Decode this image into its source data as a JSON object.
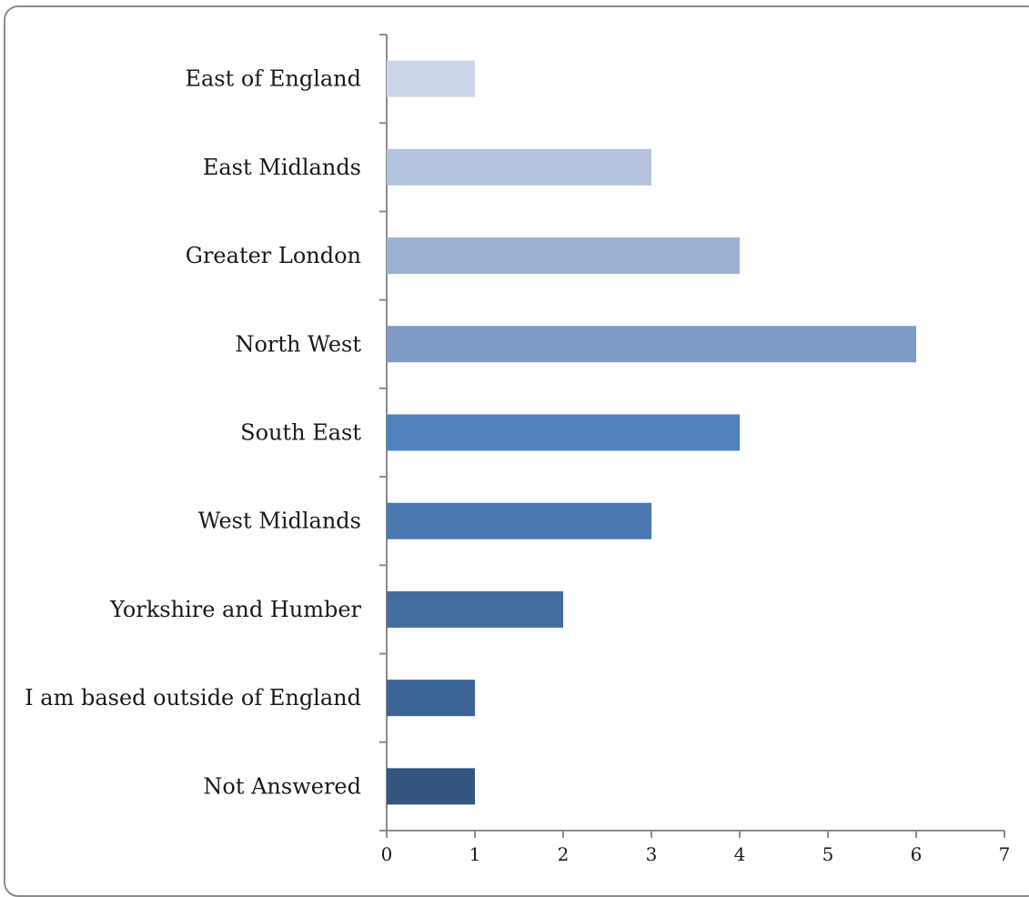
{
  "chart_data": {
    "type": "bar",
    "orientation": "horizontal",
    "categories": [
      "East of England",
      "East Midlands",
      "Greater London",
      "North West",
      "South East",
      "West Midlands",
      "Yorkshire and Humber",
      "I am based outside of England",
      "Not Answered"
    ],
    "values": [
      1,
      3,
      4,
      6,
      4,
      3,
      2,
      1,
      1
    ],
    "bar_colors": [
      "#ccd6e8",
      "#b4c3de",
      "#9db1d4",
      "#7f9bc8",
      "#4f81bd",
      "#4a78b0",
      "#436d9f",
      "#3b6393",
      "#34557f"
    ],
    "xlim": [
      0,
      7
    ],
    "x_ticks": [
      0,
      1,
      2,
      3,
      4,
      5,
      6,
      7
    ],
    "title": "",
    "xlabel": "",
    "ylabel": "",
    "grid": false,
    "legend": "none"
  }
}
